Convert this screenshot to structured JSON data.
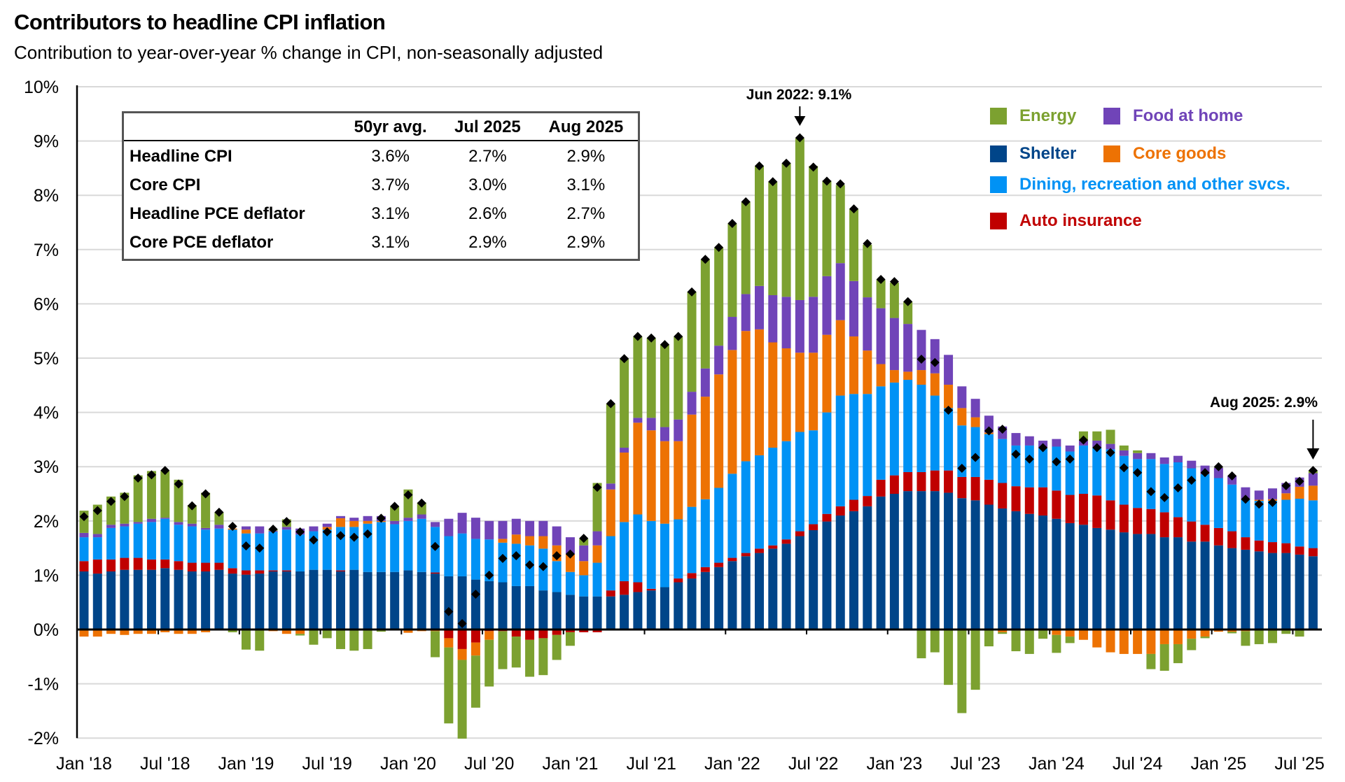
{
  "title": "Contributors to headline CPI inflation",
  "subtitle": "Contribution to year-over-year % change in CPI, non-seasonally adjusted",
  "table": {
    "headers": [
      "",
      "50yr avg.",
      "Jul 2025",
      "Aug 2025"
    ],
    "rows": [
      {
        "label": "Headline CPI",
        "values": [
          "3.6%",
          "2.7%",
          "2.9%"
        ]
      },
      {
        "label": "Core CPI",
        "values": [
          "3.7%",
          "3.0%",
          "3.1%"
        ]
      },
      {
        "label": "Headline PCE deflator",
        "values": [
          "3.1%",
          "2.6%",
          "2.7%"
        ]
      },
      {
        "label": "Core PCE deflator",
        "values": [
          "3.1%",
          "2.9%",
          "2.9%"
        ]
      }
    ]
  },
  "annotations": {
    "peak": "Jun 2022: 9.1%",
    "latest": "Aug 2025: 2.9%"
  },
  "chart_data": {
    "type": "bar",
    "stacked": true,
    "title": "Contributors to headline CPI inflation",
    "subtitle": "Contribution to year-over-year % change in CPI, non-seasonally adjusted",
    "ylim": [
      -2,
      10
    ],
    "y_ticks": [
      "-2%",
      "-1%",
      "0%",
      "1%",
      "2%",
      "3%",
      "4%",
      "5%",
      "6%",
      "7%",
      "8%",
      "9%",
      "10%"
    ],
    "y_tick_values": [
      -2,
      -1,
      0,
      1,
      2,
      3,
      4,
      5,
      6,
      7,
      8,
      9,
      10
    ],
    "x_tick_labels": [
      "Jan '18",
      "Jul '18",
      "Jan '19",
      "Jul '19",
      "Jan '20",
      "Jul '20",
      "Jan '21",
      "Jul '21",
      "Jan '22",
      "Jul '22",
      "Jan '23",
      "Jul '23",
      "Jan '24",
      "Jul '24",
      "Jan '25",
      "Jul '25"
    ],
    "x_start": "2018-01",
    "x_end": "2025-08",
    "grid": true,
    "legend_position": "top-right",
    "series": [
      {
        "name": "Shelter",
        "color": "#004589",
        "values": [
          1.07,
          1.03,
          1.07,
          1.1,
          1.1,
          1.1,
          1.13,
          1.1,
          1.07,
          1.07,
          1.1,
          1.03,
          1.01,
          1.03,
          1.07,
          1.07,
          1.07,
          1.1,
          1.1,
          1.07,
          1.1,
          1.06,
          1.06,
          1.06,
          1.09,
          1.06,
          1.03,
          0.98,
          0.98,
          0.92,
          0.89,
          0.87,
          0.8,
          0.8,
          0.72,
          0.69,
          0.64,
          0.61,
          0.61,
          0.61,
          0.64,
          0.69,
          0.72,
          0.78,
          0.87,
          0.94,
          1.06,
          1.15,
          1.26,
          1.35,
          1.41,
          1.49,
          1.58,
          1.72,
          1.83,
          1.99,
          2.1,
          2.18,
          2.27,
          2.45,
          2.5,
          2.55,
          2.55,
          2.55,
          2.52,
          2.42,
          2.38,
          2.3,
          2.23,
          2.18,
          2.13,
          2.1,
          2.04,
          1.96,
          1.93,
          1.87,
          1.84,
          1.79,
          1.76,
          1.76,
          1.7,
          1.7,
          1.62,
          1.62,
          1.55,
          1.5,
          1.47,
          1.44,
          1.41,
          1.41,
          1.38,
          1.35
        ]
      },
      {
        "name": "Auto insurance",
        "color": "#c00000",
        "values": [
          0.19,
          0.26,
          0.22,
          0.22,
          0.22,
          0.19,
          0.16,
          0.16,
          0.16,
          0.16,
          0.13,
          0.1,
          0.08,
          0.06,
          0.02,
          0.02,
          0,
          0,
          0,
          0.02,
          0,
          0,
          0,
          0,
          0,
          0,
          0.02,
          -0.16,
          -0.36,
          -0.24,
          -0.03,
          -0.03,
          -0.13,
          -0.19,
          -0.16,
          -0.1,
          -0.05,
          -0.05,
          -0.05,
          0.11,
          0.25,
          0.18,
          0.03,
          0,
          0.07,
          0.1,
          0.09,
          0.08,
          0.06,
          0.06,
          0.08,
          0.06,
          0.08,
          0.09,
          0.11,
          0.14,
          0.17,
          0.21,
          0.19,
          0.31,
          0.34,
          0.35,
          0.35,
          0.38,
          0.41,
          0.39,
          0.43,
          0.46,
          0.47,
          0.46,
          0.49,
          0.52,
          0.52,
          0.52,
          0.57,
          0.6,
          0.54,
          0.51,
          0.48,
          0.46,
          0.46,
          0.37,
          0.37,
          0.31,
          0.32,
          0.31,
          0.23,
          0.2,
          0.2,
          0.18,
          0.15,
          0.15
        ]
      },
      {
        "name": "Dining, recreation and other svcs.",
        "color": "#0092f5",
        "values": [
          0.44,
          0.41,
          0.58,
          0.58,
          0.63,
          0.69,
          0.75,
          0.67,
          0.67,
          0.61,
          0.63,
          0.71,
          0.68,
          0.68,
          0.71,
          0.75,
          0.68,
          0.71,
          0.74,
          0.8,
          0.79,
          0.89,
          0.92,
          0.88,
          0.91,
          0.98,
          0.84,
          0.74,
          0.79,
          0.75,
          0.77,
          0.73,
          0.78,
          0.75,
          0.77,
          0.57,
          0.42,
          0.39,
          0.62,
          1.0,
          1.09,
          1.25,
          1.25,
          1.17,
          1.09,
          1.22,
          1.25,
          1.38,
          1.55,
          1.69,
          1.72,
          1.8,
          1.81,
          1.83,
          1.73,
          1.87,
          2.04,
          1.95,
          1.88,
          1.72,
          1.71,
          1.7,
          1.61,
          1.38,
          1.15,
          0.95,
          0.92,
          0.84,
          0.81,
          0.75,
          0.77,
          0.72,
          0.81,
          0.8,
          0.89,
          0.88,
          0.94,
          0.9,
          0.9,
          0.92,
          0.89,
          1.01,
          0.98,
          0.93,
          0.92,
          0.86,
          0.69,
          0.73,
          0.76,
          0.8,
          0.88,
          0.88
        ]
      },
      {
        "name": "Core goods",
        "color": "#ed7203",
        "values": [
          -0.13,
          -0.13,
          -0.08,
          -0.1,
          -0.08,
          -0.08,
          -0.05,
          -0.08,
          -0.08,
          -0.05,
          0,
          0.02,
          0.07,
          0,
          -0.03,
          -0.08,
          -0.08,
          0,
          0.05,
          0.16,
          0.11,
          0.05,
          0.02,
          0,
          -0.06,
          -0.03,
          -0.03,
          -0.17,
          -0.2,
          -0.24,
          -0.16,
          0.07,
          0.17,
          0.17,
          0.23,
          0.29,
          0.33,
          0.26,
          0.32,
          0.86,
          1.28,
          1.69,
          1.67,
          1.52,
          1.44,
          1.7,
          1.89,
          2.09,
          2.28,
          2.4,
          2.32,
          1.94,
          1.71,
          1.46,
          1.43,
          1.43,
          1.39,
          1.06,
          0.8,
          0.41,
          0.23,
          0.15,
          0.27,
          0.41,
          0.43,
          0.32,
          0.18,
          0.03,
          -0.05,
          0,
          0,
          0,
          -0.1,
          -0.13,
          -0.19,
          -0.33,
          -0.42,
          -0.45,
          -0.45,
          -0.45,
          -0.27,
          -0.27,
          -0.17,
          -0.13,
          -0.04,
          -0.04,
          -0.03,
          0.02,
          0.03,
          0.12,
          0.22,
          0.27
        ]
      },
      {
        "name": "Food at home",
        "color": "#7044b8",
        "values": [
          0.08,
          0.06,
          0.06,
          0.05,
          0.03,
          0.06,
          0.02,
          0.05,
          0.05,
          0.03,
          0.07,
          0,
          0.06,
          0.13,
          0.02,
          0.05,
          0.11,
          0.09,
          0.06,
          0.04,
          0.06,
          0.09,
          0.09,
          0.06,
          0.06,
          0.08,
          0.09,
          0.32,
          0.38,
          0.39,
          0.34,
          0.33,
          0.29,
          0.28,
          0.28,
          0.35,
          0.31,
          0.29,
          0.26,
          0.11,
          0.09,
          0.09,
          0.23,
          0.26,
          0.4,
          0.42,
          0.52,
          0.53,
          0.61,
          0.68,
          0.8,
          0.87,
          0.95,
          0.97,
          1.03,
          1.08,
          1.05,
          1.02,
          0.98,
          1.03,
          0.96,
          0.88,
          0.74,
          0.63,
          0.55,
          0.4,
          0.34,
          0.31,
          0.23,
          0.23,
          0.17,
          0.14,
          0.14,
          0.11,
          0.09,
          0.13,
          0.1,
          0.1,
          0.11,
          0.11,
          0.12,
          0.12,
          0.14,
          0.16,
          0.19,
          0.16,
          0.23,
          0.17,
          0.2,
          0.19,
          0.17,
          0.23
        ]
      },
      {
        "name": "Energy",
        "color": "#7ca130",
        "values": [
          0.41,
          0.54,
          0.52,
          0.57,
          0.86,
          0.88,
          0.86,
          0.78,
          0.34,
          0.65,
          0.23,
          -0.05,
          -0.37,
          -0.39,
          0.03,
          0.14,
          -0.03,
          -0.28,
          -0.16,
          -0.36,
          -0.39,
          -0.36,
          -0.04,
          0.27,
          0.52,
          0.22,
          -0.48,
          -1.4,
          -1.45,
          -0.96,
          -0.86,
          -0.7,
          -0.57,
          -0.68,
          -0.68,
          -0.46,
          -0.25,
          0.12,
          0.89,
          1.47,
          1.64,
          1.5,
          1.47,
          1.52,
          1.53,
          1.84,
          2.01,
          1.81,
          1.72,
          1.7,
          2.21,
          2.09,
          2.46,
          2.98,
          2.41,
          1.76,
          1.44,
          1.33,
          0.97,
          0.52,
          0.65,
          0.41,
          -0.53,
          -0.42,
          -1.02,
          -1.54,
          -1.11,
          -0.31,
          -0.03,
          -0.4,
          -0.45,
          -0.17,
          -0.33,
          -0.12,
          0.17,
          0.17,
          0.26,
          0.09,
          0.05,
          -0.28,
          -0.49,
          -0.35,
          -0.21,
          -0.03,
          0.01,
          -0.03,
          -0.27,
          -0.27,
          -0.25,
          -0.08,
          -0.13,
          0.05
        ]
      }
    ],
    "headline": {
      "name": "Headline CPI",
      "marker": "diamond",
      "color": "#000000",
      "values": [
        2.08,
        2.19,
        2.36,
        2.45,
        2.79,
        2.85,
        2.93,
        2.68,
        2.28,
        2.5,
        2.16,
        1.9,
        1.54,
        1.5,
        1.85,
        1.99,
        1.8,
        1.65,
        1.8,
        1.73,
        1.7,
        1.76,
        2.05,
        2.27,
        2.48,
        2.33,
        1.53,
        0.33,
        0.11,
        0.65,
        1.0,
        1.31,
        1.36,
        1.19,
        1.16,
        1.36,
        1.39,
        1.68,
        2.62,
        4.16,
        4.99,
        5.4,
        5.37,
        5.25,
        5.4,
        6.22,
        6.82,
        7.04,
        7.48,
        7.88,
        8.54,
        8.25,
        8.59,
        9.06,
        8.52,
        8.26,
        8.21,
        7.75,
        7.11,
        6.45,
        6.41,
        6.04,
        4.98,
        4.92,
        4.04,
        2.97,
        3.17,
        3.66,
        3.69,
        3.23,
        3.14,
        3.35,
        3.09,
        3.14,
        3.49,
        3.35,
        3.26,
        2.98,
        2.89,
        2.54,
        2.43,
        2.61,
        2.75,
        2.89,
        3.0,
        2.83,
        2.4,
        2.31,
        2.34,
        2.65,
        2.73,
        2.93
      ]
    }
  }
}
